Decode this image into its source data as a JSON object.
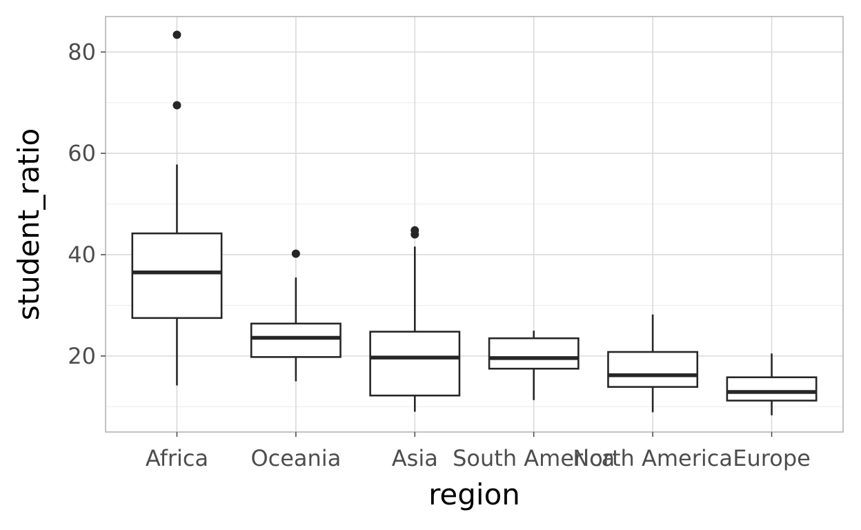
{
  "chart_data": {
    "type": "boxplot",
    "xlabel": "region",
    "ylabel": "student_ratio",
    "categories": [
      "Africa",
      "Oceania",
      "Asia",
      "South America",
      "North America",
      "Europe"
    ],
    "ylim": [
      5,
      87
    ],
    "yticks": [
      20,
      40,
      60,
      80
    ],
    "grid": true,
    "legend": "none",
    "boxes": [
      {
        "category": "Africa",
        "whisker_low": 14.2,
        "q1": 27.5,
        "median": 36.5,
        "q3": 44.2,
        "whisker_high": 57.8,
        "outliers": [
          69.5,
          83.4
        ]
      },
      {
        "category": "Oceania",
        "whisker_low": 15.0,
        "q1": 19.8,
        "median": 23.6,
        "q3": 26.4,
        "whisker_high": 35.5,
        "outliers": [
          40.2
        ]
      },
      {
        "category": "Asia",
        "whisker_low": 9.0,
        "q1": 12.2,
        "median": 19.7,
        "q3": 24.8,
        "whisker_high": 41.6,
        "outliers": [
          44.0,
          44.8
        ]
      },
      {
        "category": "South America",
        "whisker_low": 11.3,
        "q1": 17.5,
        "median": 19.6,
        "q3": 23.5,
        "whisker_high": 25.0,
        "outliers": []
      },
      {
        "category": "North America",
        "whisker_low": 8.9,
        "q1": 13.9,
        "median": 16.2,
        "q3": 20.8,
        "whisker_high": 28.2,
        "outliers": []
      },
      {
        "category": "Europe",
        "whisker_low": 8.3,
        "q1": 11.2,
        "median": 12.9,
        "q3": 15.8,
        "whisker_high": 20.5,
        "outliers": []
      }
    ]
  }
}
